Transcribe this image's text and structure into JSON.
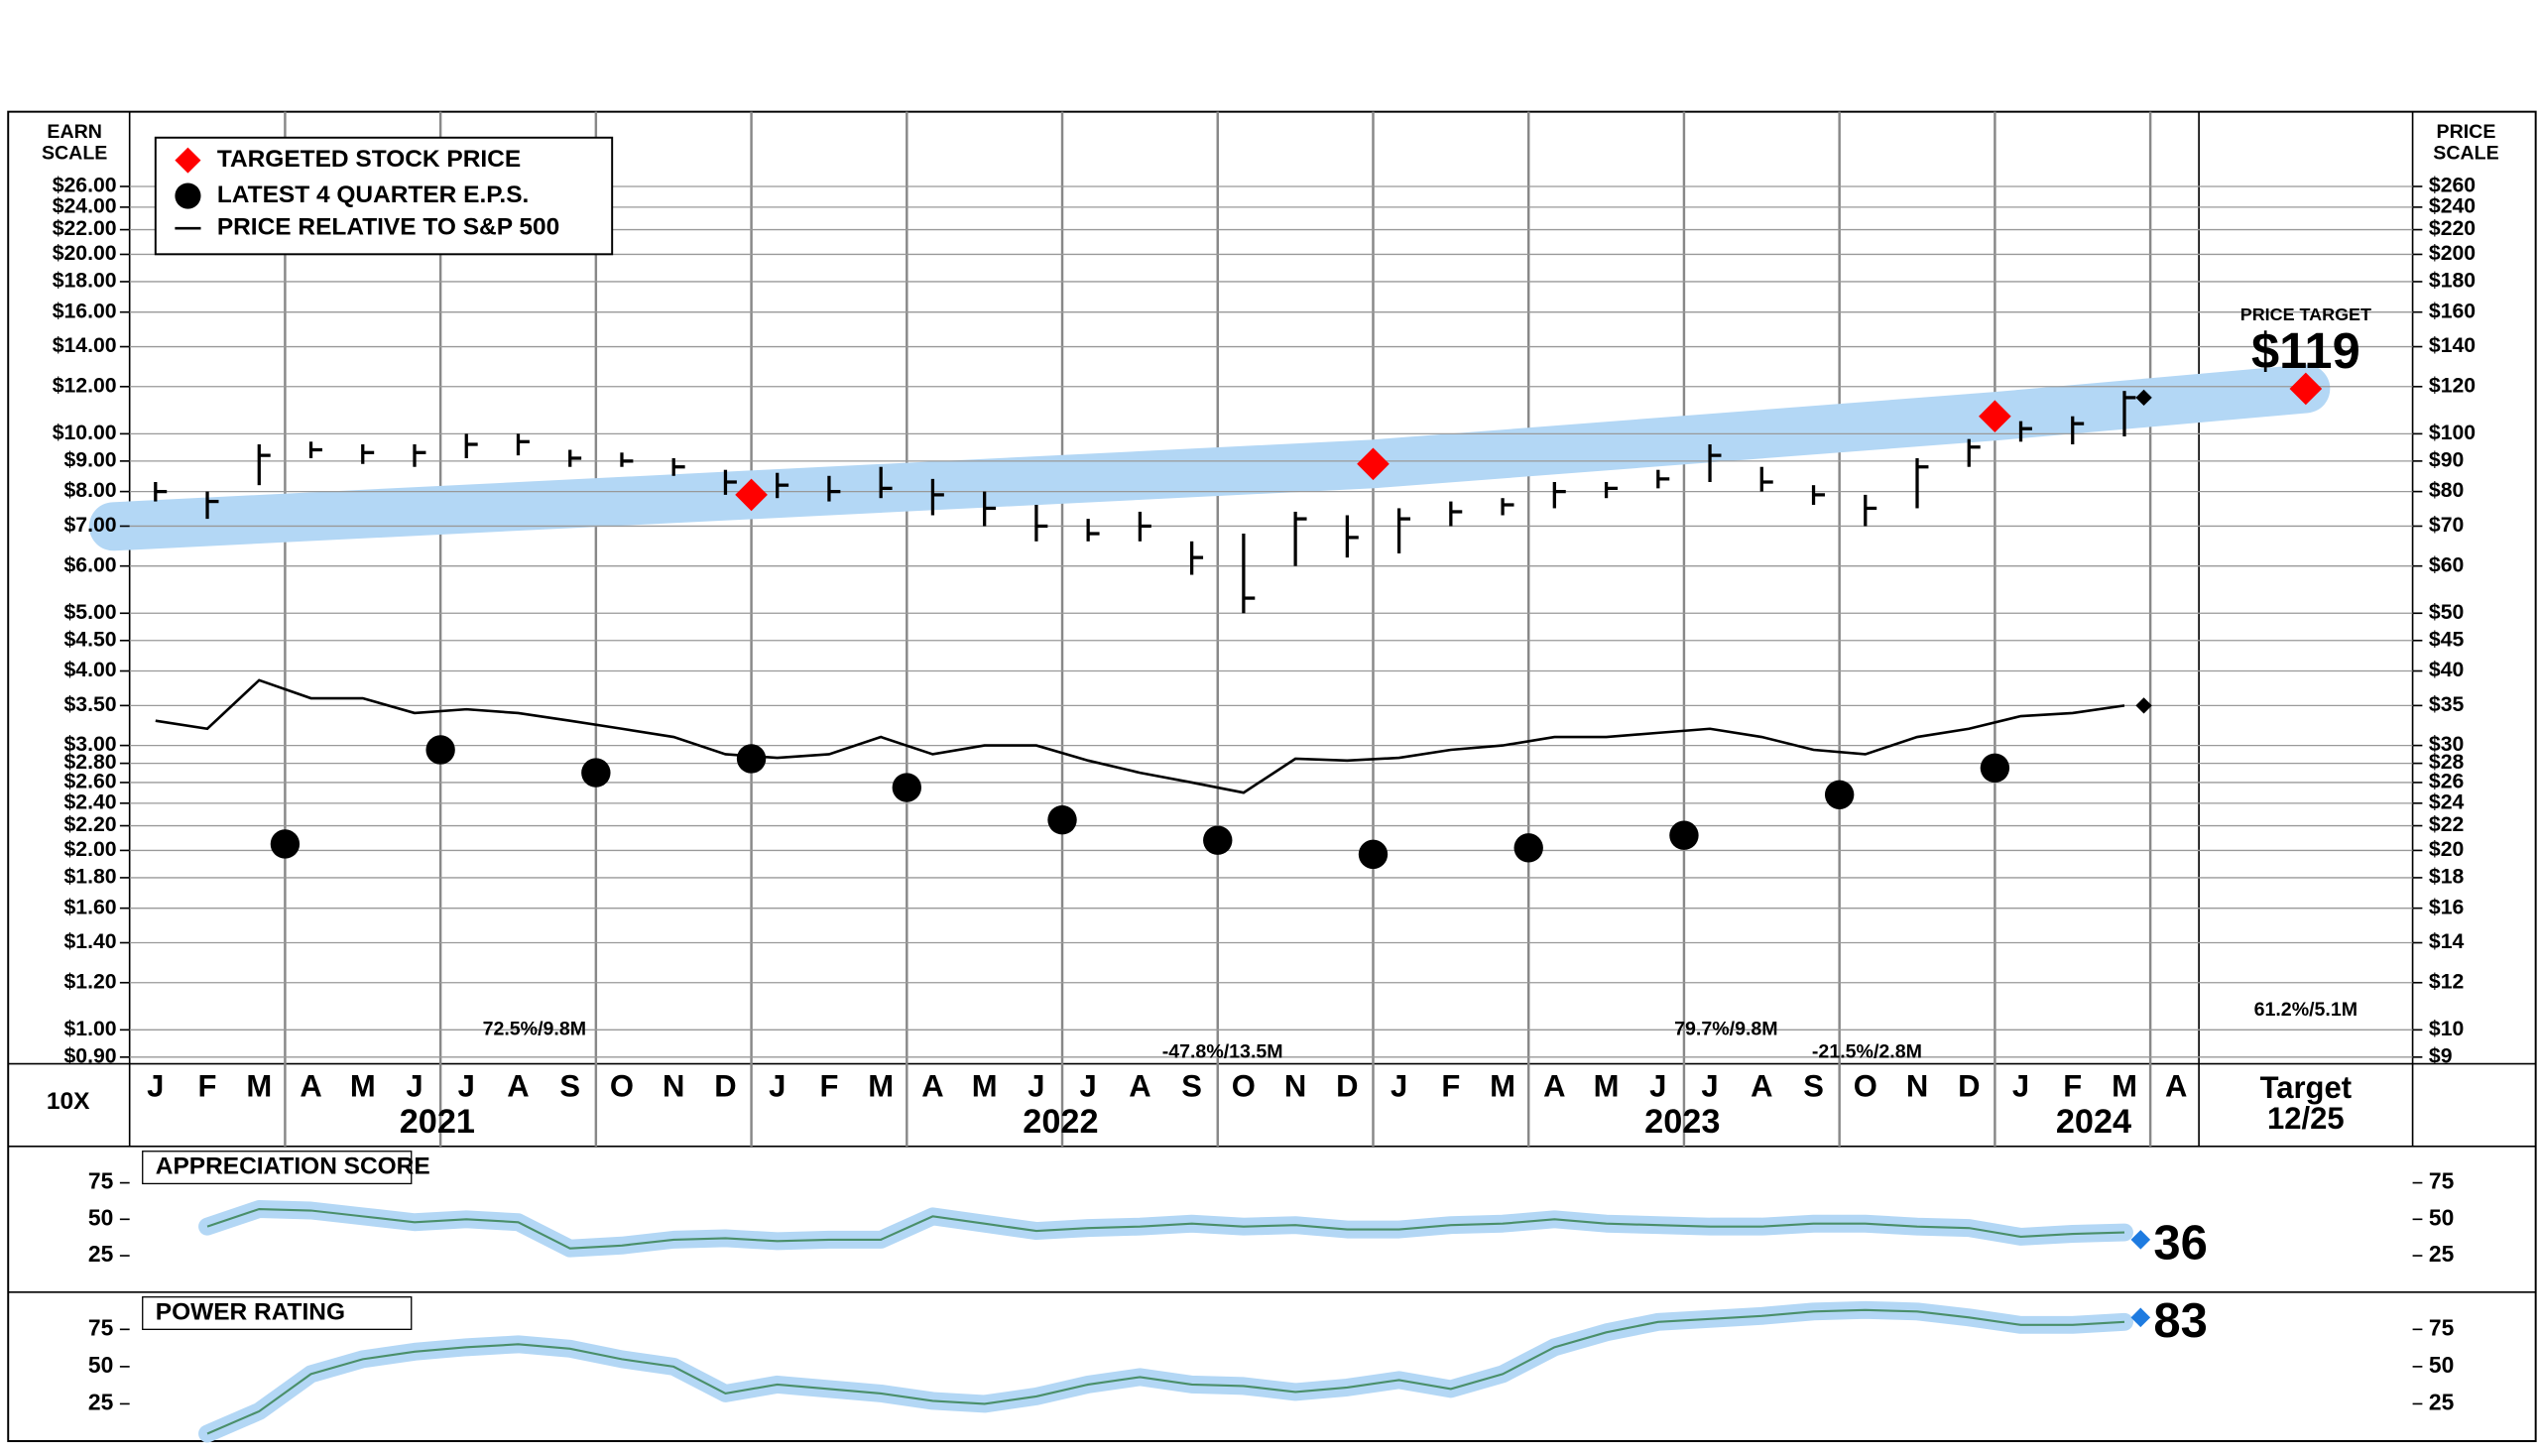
{
  "chart_data": [
    {
      "type": "stock",
      "earn_scale_title": [
        "EARN",
        "SCALE"
      ],
      "price_scale_title": [
        "PRICE",
        "SCALE"
      ],
      "multiplier_label": "10X",
      "categories": [
        "J",
        "F",
        "M",
        "A",
        "M",
        "J",
        "J",
        "A",
        "S",
        "O",
        "N",
        "D",
        "J",
        "F",
        "M",
        "A",
        "M",
        "J",
        "J",
        "A",
        "S",
        "O",
        "N",
        "D",
        "J",
        "F",
        "M",
        "A",
        "M",
        "J",
        "J",
        "A",
        "S",
        "O",
        "N",
        "D",
        "J",
        "F",
        "M",
        "A"
      ],
      "years": [
        "2021",
        "2022",
        "2023",
        "2024"
      ],
      "log_scale": true,
      "grid": true,
      "ylim": [
        8.77,
        347
      ],
      "y2lim": [
        0.877,
        34.7
      ],
      "yticks": [
        {
          "value": 260,
          "label": "$260"
        },
        {
          "value": 240,
          "label": "$240"
        },
        {
          "value": 220,
          "label": "$220"
        },
        {
          "value": 200,
          "label": "$200"
        },
        {
          "value": 180,
          "label": "$180"
        },
        {
          "value": 160,
          "label": "$160"
        },
        {
          "value": 140,
          "label": "$140"
        },
        {
          "value": 120,
          "label": "$120"
        },
        {
          "value": 100,
          "label": "$100"
        },
        {
          "value": 90,
          "label": "$90"
        },
        {
          "value": 80,
          "label": "$80"
        },
        {
          "value": 70,
          "label": "$70"
        },
        {
          "value": 60,
          "label": "$60"
        },
        {
          "value": 50,
          "label": "$50"
        },
        {
          "value": 45,
          "label": "$45"
        },
        {
          "value": 40,
          "label": "$40"
        },
        {
          "value": 35,
          "label": "$35"
        },
        {
          "value": 30,
          "label": "$30"
        },
        {
          "value": 28,
          "label": "$28"
        },
        {
          "value": 26,
          "label": "$26"
        },
        {
          "value": 24,
          "label": "$24"
        },
        {
          "value": 22,
          "label": "$22"
        },
        {
          "value": 20,
          "label": "$20"
        },
        {
          "value": 18,
          "label": "$18"
        },
        {
          "value": 16,
          "label": "$16"
        },
        {
          "value": 14,
          "label": "$14"
        },
        {
          "value": 12,
          "label": "$12"
        },
        {
          "value": 10,
          "label": "$10"
        },
        {
          "value": 9,
          "label": "$9"
        }
      ],
      "y2ticks": [
        {
          "value": 26,
          "label": "$26.00"
        },
        {
          "value": 24,
          "label": "$24.00"
        },
        {
          "value": 22,
          "label": "$22.00"
        },
        {
          "value": 20,
          "label": "$20.00"
        },
        {
          "value": 18,
          "label": "$18.00"
        },
        {
          "value": 16,
          "label": "$16.00"
        },
        {
          "value": 14,
          "label": "$14.00"
        },
        {
          "value": 12,
          "label": "$12.00"
        },
        {
          "value": 10,
          "label": "$10.00"
        },
        {
          "value": 9,
          "label": "$9.00"
        },
        {
          "value": 8,
          "label": "$8.00"
        },
        {
          "value": 7,
          "label": "$7.00"
        },
        {
          "value": 6,
          "label": "$6.00"
        },
        {
          "value": 5,
          "label": "$5.00"
        },
        {
          "value": 4.5,
          "label": "$4.50"
        },
        {
          "value": 4,
          "label": "$4.00"
        },
        {
          "value": 3.5,
          "label": "$3.50"
        },
        {
          "value": 3,
          "label": "$3.00"
        },
        {
          "value": 2.8,
          "label": "$2.80"
        },
        {
          "value": 2.6,
          "label": "$2.60"
        },
        {
          "value": 2.4,
          "label": "$2.40"
        },
        {
          "value": 2.2,
          "label": "$2.20"
        },
        {
          "value": 2,
          "label": "$2.00"
        },
        {
          "value": 1.8,
          "label": "$1.80"
        },
        {
          "value": 1.6,
          "label": "$1.60"
        },
        {
          "value": 1.4,
          "label": "$1.40"
        },
        {
          "value": 1.2,
          "label": "$1.20"
        },
        {
          "value": 1,
          "label": "$1.00"
        },
        {
          "value": 0.9,
          "label": "$0.90"
        }
      ],
      "price": {
        "color": "#000000",
        "high": [
          83,
          80,
          96,
          97,
          96,
          96,
          100,
          100,
          94,
          93,
          91,
          87,
          86,
          85,
          88,
          84,
          80,
          76,
          72,
          74,
          66,
          68,
          74,
          73,
          75,
          77,
          78,
          83,
          83,
          87,
          96,
          88,
          82,
          79,
          91,
          98,
          105,
          107,
          118,
          null
        ],
        "low": [
          77,
          72,
          82,
          91,
          89,
          88,
          91,
          92,
          88,
          88,
          85,
          79,
          78,
          77,
          78,
          73,
          70,
          66,
          66,
          66,
          58,
          50,
          60,
          62,
          63,
          70,
          73,
          75,
          78,
          81,
          83,
          80,
          76,
          70,
          75,
          88,
          97,
          96,
          99,
          null
        ],
        "values": [
          80,
          77,
          92,
          94,
          93,
          93,
          96,
          97,
          91,
          90,
          88,
          83,
          82,
          80,
          81,
          79,
          75,
          70,
          68,
          70,
          62,
          53,
          72,
          67,
          72,
          74,
          76,
          80,
          81,
          84,
          92,
          83,
          79,
          75,
          88,
          95,
          102,
          104,
          115,
          null
        ]
      },
      "series": [
        {
          "name": "TARGETED STOCK PRICE",
          "color": "#ff0000",
          "values": [
            null,
            null,
            null,
            null,
            null,
            null,
            null,
            null,
            null,
            null,
            null,
            null,
            79,
            null,
            null,
            null,
            null,
            null,
            null,
            null,
            null,
            null,
            null,
            null,
            89,
            null,
            null,
            null,
            null,
            null,
            null,
            null,
            null,
            null,
            null,
            null,
            107,
            null,
            null,
            null
          ]
        },
        {
          "name": "LATEST 4 QUARTER E.P.S.",
          "color": "#000000",
          "axis": "y2",
          "values": [
            null,
            null,
            null,
            2.05,
            null,
            null,
            2.95,
            null,
            null,
            2.7,
            null,
            null,
            2.85,
            null,
            null,
            2.55,
            null,
            null,
            2.25,
            null,
            null,
            2.08,
            null,
            null,
            1.97,
            null,
            null,
            2.02,
            null,
            null,
            2.12,
            null,
            null,
            2.48,
            null,
            null,
            2.75,
            null,
            null,
            null
          ]
        },
        {
          "name": "PRICE RELATIVE TO S&P 500",
          "color": "#000000",
          "values": [
            33,
            32,
            38.6,
            36,
            36,
            34,
            34.5,
            34,
            33,
            32,
            31,
            29,
            28.6,
            29,
            31,
            29,
            30,
            30,
            28.3,
            27,
            26,
            25,
            28.5,
            28.3,
            28.6,
            29.5,
            30,
            31,
            31,
            31.5,
            32,
            31,
            29.5,
            29,
            31,
            32,
            33.6,
            34,
            35,
            null
          ]
        }
      ],
      "band_color": "#b3d7f5",
      "target": {
        "caption": "PRICE TARGET",
        "value": 119,
        "value_label": "$119",
        "label": "Target",
        "date": "12/25"
      },
      "annotations": [
        {
          "text": "72.5%/9.8M",
          "color": "#33dd33"
        },
        {
          "text": "-47.8%/13.5M",
          "color": "#ee2222"
        },
        {
          "text": "79.7%/9.8M",
          "color": "#33dd33"
        },
        {
          "text": "-21.5%/2.8M",
          "color": "#ee2222"
        },
        {
          "text": "61.2%/5.1M",
          "color": "#33dd33"
        }
      ]
    },
    {
      "type": "line",
      "title": "APPRECIATION SCORE",
      "ylim": [
        0,
        100
      ],
      "yticks": [
        75,
        50,
        25
      ],
      "color": "#4a8f6a",
      "current_color": "#1e7be0",
      "values": [
        null,
        45,
        57,
        56,
        52,
        48,
        50,
        48,
        30,
        32,
        36,
        37,
        35,
        36,
        36,
        52,
        47,
        42,
        44,
        45,
        47,
        45,
        46,
        43,
        43,
        46,
        47,
        50,
        47,
        46,
        45,
        45,
        47,
        47,
        45,
        44,
        38,
        40,
        41,
        null
      ],
      "current": 36
    },
    {
      "type": "line",
      "title": "POWER RATING",
      "ylim": [
        0,
        100
      ],
      "yticks": [
        75,
        50,
        25
      ],
      "color": "#4a8f6a",
      "current_color": "#1e7be0",
      "values": [
        null,
        5,
        20,
        45,
        55,
        60,
        63,
        65,
        62,
        55,
        50,
        32,
        38,
        35,
        32,
        27,
        25,
        30,
        38,
        43,
        38,
        37,
        33,
        36,
        41,
        35,
        45,
        63,
        73,
        80,
        82,
        84,
        87,
        88,
        87,
        83,
        78,
        78,
        80,
        null
      ],
      "current": 83
    }
  ]
}
